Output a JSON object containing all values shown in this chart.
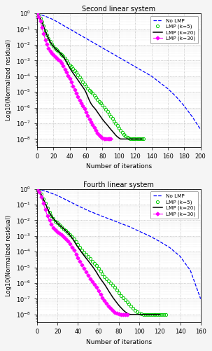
{
  "title1": "Second linear system",
  "title2": "Fourth linear system",
  "xlabel": "Number of iterations",
  "ylabel": "Log10(Normalized residual)",
  "plot1": {
    "no_lmp_x": [
      0,
      10,
      20,
      30,
      40,
      50,
      60,
      70,
      80,
      90,
      100,
      110,
      120,
      130,
      140,
      150,
      160,
      170,
      180,
      190,
      200
    ],
    "no_lmp_y": [
      0,
      -0.18,
      -0.4,
      -0.7,
      -1.0,
      -1.3,
      -1.6,
      -1.9,
      -2.2,
      -2.5,
      -2.8,
      -3.1,
      -3.4,
      -3.7,
      -4.0,
      -4.4,
      -4.8,
      -5.3,
      -5.9,
      -6.6,
      -7.4
    ],
    "lmp5_x": [
      0,
      2,
      4,
      6,
      8,
      10,
      12,
      14,
      16,
      18,
      20,
      22,
      24,
      26,
      28,
      30,
      32,
      34,
      36,
      38,
      40,
      42,
      44,
      46,
      48,
      50,
      52,
      54,
      56,
      58,
      60,
      62,
      64,
      66,
      68,
      70,
      72,
      74,
      76,
      78,
      80,
      82,
      84,
      86,
      88,
      90,
      92,
      94,
      96,
      98,
      100,
      102,
      104,
      106,
      108,
      110,
      112,
      114,
      116,
      118,
      120,
      122,
      124,
      126,
      128,
      130
    ],
    "lmp5_y": [
      0,
      -0.15,
      -0.32,
      -0.55,
      -0.82,
      -1.1,
      -1.38,
      -1.6,
      -1.8,
      -1.97,
      -2.1,
      -2.22,
      -2.32,
      -2.42,
      -2.52,
      -2.62,
      -2.72,
      -2.85,
      -3.0,
      -3.15,
      -3.28,
      -3.4,
      -3.52,
      -3.64,
      -3.76,
      -3.9,
      -4.05,
      -4.2,
      -4.35,
      -4.5,
      -4.65,
      -4.78,
      -4.9,
      -5.0,
      -5.1,
      -5.22,
      -5.35,
      -5.48,
      -5.6,
      -5.72,
      -5.85,
      -5.97,
      -6.1,
      -6.25,
      -6.4,
      -6.55,
      -6.7,
      -6.85,
      -7.0,
      -7.15,
      -7.3,
      -7.45,
      -7.6,
      -7.72,
      -7.82,
      -7.9,
      -7.95,
      -8.0,
      -8.0,
      -8.0,
      -8.0,
      -8.0,
      -8.0,
      -8.0,
      -8.0,
      -8.0
    ],
    "lmp20_x": [
      0,
      2,
      4,
      6,
      8,
      10,
      12,
      14,
      16,
      18,
      20,
      22,
      24,
      26,
      28,
      30,
      32,
      34,
      36,
      38,
      40,
      42,
      44,
      46,
      48,
      50,
      52,
      54,
      56,
      58,
      60,
      62,
      64,
      66,
      68,
      70,
      72,
      74,
      76,
      78,
      80,
      82,
      84,
      86,
      88,
      90,
      92,
      94,
      96,
      98,
      100,
      102,
      104,
      106,
      108,
      110,
      112,
      114,
      116,
      118,
      120,
      122,
      124,
      126,
      128
    ],
    "lmp20_y": [
      0,
      -0.15,
      -0.32,
      -0.55,
      -0.82,
      -1.1,
      -1.38,
      -1.6,
      -1.8,
      -1.97,
      -2.1,
      -2.22,
      -2.32,
      -2.42,
      -2.52,
      -2.62,
      -2.75,
      -2.9,
      -3.08,
      -3.28,
      -3.48,
      -3.65,
      -3.8,
      -3.95,
      -4.1,
      -4.25,
      -4.4,
      -4.55,
      -4.7,
      -4.85,
      -5.05,
      -5.3,
      -5.55,
      -5.75,
      -5.9,
      -6.02,
      -6.15,
      -6.3,
      -6.45,
      -6.6,
      -6.75,
      -6.88,
      -7.0,
      -7.12,
      -7.25,
      -7.38,
      -7.5,
      -7.62,
      -7.75,
      -7.85,
      -7.93,
      -8.0,
      -8.0,
      -8.0,
      -8.0,
      -8.0,
      -8.0,
      -8.0,
      -8.0,
      -8.0,
      -8.0,
      -8.0,
      -8.0,
      -8.0,
      -8.0
    ],
    "lmp30_x": [
      0,
      2,
      4,
      6,
      8,
      10,
      12,
      14,
      16,
      18,
      20,
      22,
      24,
      26,
      28,
      30,
      32,
      34,
      36,
      38,
      40,
      42,
      44,
      46,
      48,
      50,
      52,
      54,
      56,
      58,
      60,
      62,
      64,
      66,
      68,
      70,
      72,
      74,
      76,
      78,
      80,
      82,
      84,
      86,
      88,
      90
    ],
    "lmp30_y": [
      0,
      -0.2,
      -0.5,
      -0.9,
      -1.3,
      -1.68,
      -1.98,
      -2.22,
      -2.4,
      -2.55,
      -2.65,
      -2.75,
      -2.85,
      -2.95,
      -3.05,
      -3.18,
      -3.35,
      -3.55,
      -3.75,
      -3.95,
      -4.15,
      -4.38,
      -4.62,
      -4.85,
      -5.08,
      -5.3,
      -5.52,
      -5.72,
      -5.9,
      -6.08,
      -6.28,
      -6.5,
      -6.72,
      -6.92,
      -7.1,
      -7.28,
      -7.46,
      -7.62,
      -7.75,
      -7.85,
      -7.92,
      -7.97,
      -8.0,
      -8.0,
      -8.0,
      -8.0
    ],
    "xlim": [
      0,
      200
    ],
    "xticks": [
      0,
      20,
      40,
      60,
      80,
      100,
      120,
      140,
      160,
      180,
      200
    ]
  },
  "plot2": {
    "no_lmp_x": [
      0,
      10,
      20,
      30,
      40,
      50,
      60,
      70,
      80,
      90,
      100,
      110,
      120,
      130,
      140,
      150,
      160
    ],
    "no_lmp_y": [
      0,
      -0.18,
      -0.42,
      -0.75,
      -1.08,
      -1.38,
      -1.65,
      -1.9,
      -2.15,
      -2.4,
      -2.7,
      -3.0,
      -3.35,
      -3.75,
      -4.3,
      -5.2,
      -7.0
    ],
    "lmp5_x": [
      0,
      2,
      4,
      6,
      8,
      10,
      12,
      14,
      16,
      18,
      20,
      22,
      24,
      26,
      28,
      30,
      32,
      34,
      36,
      38,
      40,
      42,
      44,
      46,
      48,
      50,
      52,
      54,
      56,
      58,
      60,
      62,
      64,
      66,
      68,
      70,
      72,
      74,
      76,
      78,
      80,
      82,
      84,
      86,
      88,
      90,
      92,
      94,
      96,
      98,
      100,
      102,
      104,
      106,
      108,
      110,
      112,
      114,
      116,
      118,
      120,
      122,
      124,
      126
    ],
    "lmp5_y": [
      0,
      -0.15,
      -0.35,
      -0.62,
      -0.92,
      -1.22,
      -1.5,
      -1.72,
      -1.9,
      -2.05,
      -2.18,
      -2.3,
      -2.42,
      -2.54,
      -2.66,
      -2.78,
      -2.9,
      -3.05,
      -3.2,
      -3.38,
      -3.55,
      -3.72,
      -3.88,
      -4.02,
      -4.16,
      -4.3,
      -4.45,
      -4.6,
      -4.75,
      -4.9,
      -5.08,
      -5.25,
      -5.42,
      -5.58,
      -5.72,
      -5.85,
      -5.98,
      -6.12,
      -6.28,
      -6.45,
      -6.62,
      -6.78,
      -6.92,
      -7.05,
      -7.18,
      -7.32,
      -7.46,
      -7.6,
      -7.72,
      -7.82,
      -7.9,
      -7.96,
      -8.0,
      -8.0,
      -8.0,
      -8.0,
      -8.0,
      -8.0,
      -8.0,
      -8.0,
      -8.0,
      -8.0,
      -8.0,
      -8.0
    ],
    "lmp20_x": [
      0,
      2,
      4,
      6,
      8,
      10,
      12,
      14,
      16,
      18,
      20,
      22,
      24,
      26,
      28,
      30,
      32,
      34,
      36,
      38,
      40,
      42,
      44,
      46,
      48,
      50,
      52,
      54,
      56,
      58,
      60,
      62,
      64,
      66,
      68,
      70,
      72,
      74,
      76,
      78,
      80,
      82,
      84,
      86,
      88,
      90,
      92,
      94,
      96,
      98,
      100,
      102,
      104,
      106,
      108,
      110,
      112,
      114,
      116,
      118,
      120
    ],
    "lmp20_y": [
      0,
      -0.15,
      -0.35,
      -0.62,
      -0.92,
      -1.22,
      -1.5,
      -1.72,
      -1.9,
      -2.05,
      -2.18,
      -2.3,
      -2.42,
      -2.54,
      -2.66,
      -2.78,
      -2.93,
      -3.1,
      -3.3,
      -3.52,
      -3.72,
      -3.9,
      -4.08,
      -4.25,
      -4.42,
      -4.58,
      -4.75,
      -4.92,
      -5.1,
      -5.3,
      -5.52,
      -5.72,
      -5.9,
      -6.08,
      -6.28,
      -6.5,
      -6.7,
      -6.9,
      -7.08,
      -7.25,
      -7.42,
      -7.56,
      -7.7,
      -7.82,
      -7.92,
      -7.98,
      -8.0,
      -8.0,
      -8.0,
      -8.0,
      -8.0,
      -8.0,
      -8.0,
      -8.0,
      -8.0,
      -8.0,
      -8.0,
      -8.0,
      -8.0,
      -8.0,
      -8.0
    ],
    "lmp30_x": [
      0,
      2,
      4,
      6,
      8,
      10,
      12,
      14,
      16,
      18,
      20,
      22,
      24,
      26,
      28,
      30,
      32,
      34,
      36,
      38,
      40,
      42,
      44,
      46,
      48,
      50,
      52,
      54,
      56,
      58,
      60,
      62,
      64,
      66,
      68,
      70,
      72,
      74,
      76,
      78,
      80,
      82,
      84,
      86,
      88
    ],
    "lmp30_y": [
      0,
      -0.2,
      -0.5,
      -0.9,
      -1.32,
      -1.7,
      -2.0,
      -2.25,
      -2.45,
      -2.6,
      -2.72,
      -2.82,
      -2.93,
      -3.05,
      -3.18,
      -3.32,
      -3.5,
      -3.7,
      -3.92,
      -4.15,
      -4.38,
      -4.62,
      -4.85,
      -5.08,
      -5.3,
      -5.52,
      -5.72,
      -5.9,
      -6.08,
      -6.28,
      -6.5,
      -6.72,
      -6.92,
      -7.1,
      -7.28,
      -7.46,
      -7.62,
      -7.75,
      -7.86,
      -7.93,
      -7.98,
      -8.0,
      -8.0,
      -8.0,
      -8.0
    ],
    "xlim": [
      0,
      160
    ],
    "xticks": [
      0,
      20,
      40,
      60,
      80,
      100,
      120,
      140,
      160
    ]
  },
  "colors": {
    "no_lmp": "#0000ff",
    "lmp5": "#00cc00",
    "lmp20": "#000000",
    "lmp30": "#ff00ff"
  },
  "bg_color": "#f5f5f5",
  "axes_bg": "#ffffff"
}
